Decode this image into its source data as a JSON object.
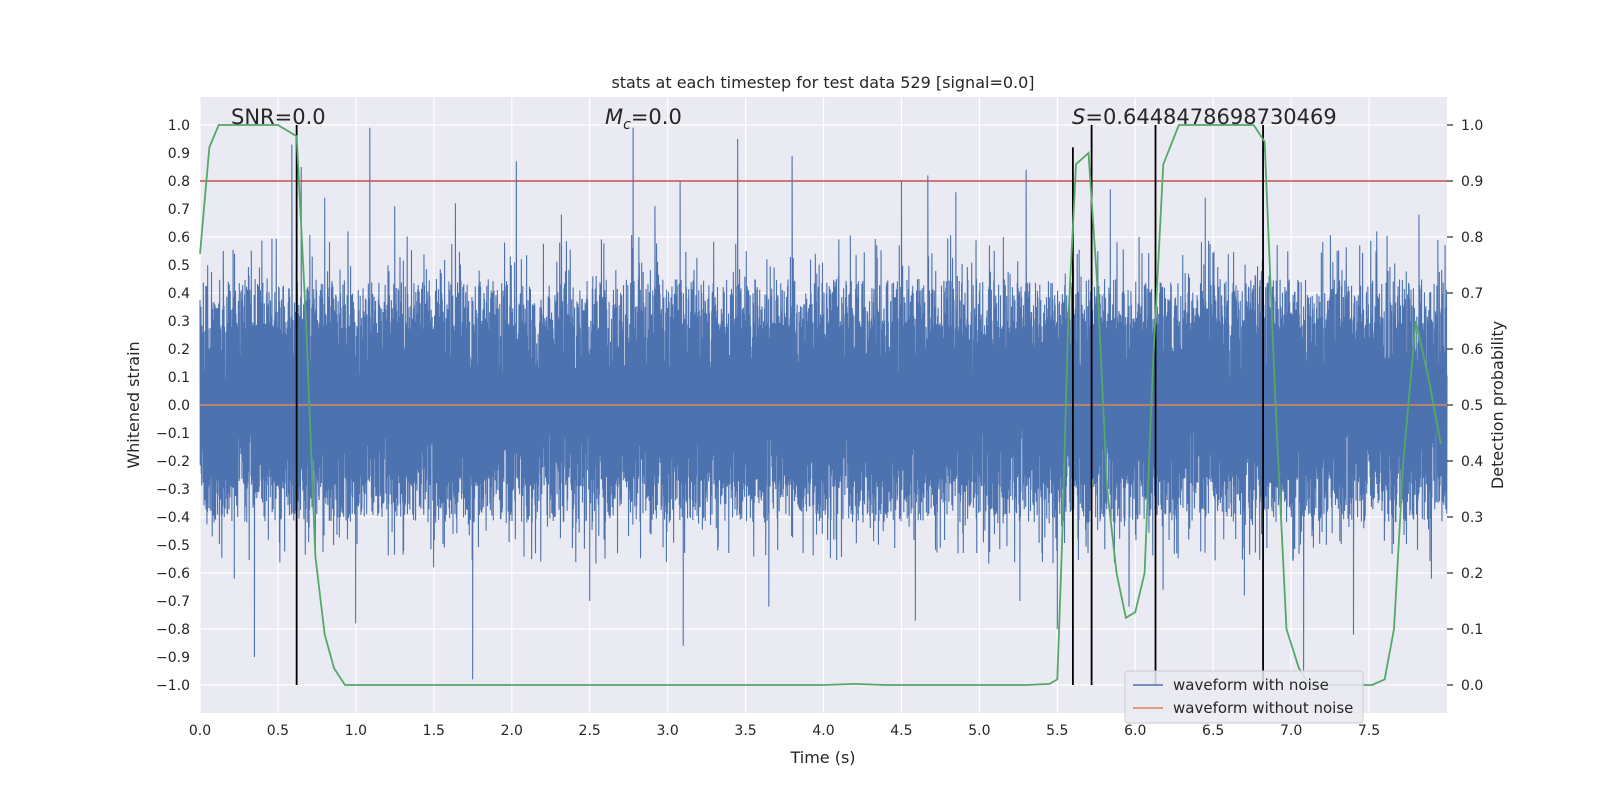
{
  "chart_data": {
    "type": "line",
    "title": "stats at each timestep for test data 529 [signal=0.0]",
    "xlabel": "Time (s)",
    "ylabel": "Whitened strain",
    "y2label": "Detection probability",
    "xlim": [
      0,
      8
    ],
    "ylim": [
      -1.1,
      1.1
    ],
    "y2lim": [
      -0.05,
      1.05
    ],
    "xticks": [
      0.0,
      0.5,
      1.0,
      1.5,
      2.0,
      2.5,
      3.0,
      3.5,
      4.0,
      4.5,
      5.0,
      5.5,
      6.0,
      6.5,
      7.0,
      7.5
    ],
    "xtick_labels": [
      "0.0",
      "0.5",
      "1.0",
      "1.5",
      "2.0",
      "2.5",
      "3.0",
      "3.5",
      "4.0",
      "4.5",
      "5.0",
      "5.5",
      "6.0",
      "6.5",
      "7.0",
      "7.5"
    ],
    "yticks": [
      -1.0,
      -0.9,
      -0.8,
      -0.7,
      -0.6,
      -0.5,
      -0.4,
      -0.3,
      -0.2,
      -0.1,
      0.0,
      0.1,
      0.2,
      0.3,
      0.4,
      0.5,
      0.6,
      0.7,
      0.8,
      0.9,
      1.0
    ],
    "ytick_labels": [
      "−1.0",
      "−0.9",
      "−0.8",
      "−0.7",
      "−0.6",
      "−0.5",
      "−0.4",
      "−0.3",
      "−0.2",
      "−0.1",
      "0.0",
      "0.1",
      "0.2",
      "0.3",
      "0.4",
      "0.5",
      "0.6",
      "0.7",
      "0.8",
      "0.9",
      "1.0"
    ],
    "y2ticks": [
      0.0,
      0.1,
      0.2,
      0.3,
      0.4,
      0.5,
      0.6,
      0.7,
      0.8,
      0.9,
      1.0
    ],
    "y2tick_labels": [
      "0.0",
      "0.1",
      "0.2",
      "0.3",
      "0.4",
      "0.5",
      "0.6",
      "0.7",
      "0.8",
      "0.9",
      "1.0"
    ],
    "grid": true,
    "threshold": {
      "value": 0.8,
      "color": "#c44e52"
    },
    "annotations": {
      "snr": {
        "prefix": "SNR=",
        "value": "0.0"
      },
      "mc": {
        "symbol": "M",
        "subscript": "c",
        "value": "=0.0"
      },
      "s": {
        "symbol": "S",
        "value": "=0.6448478698730469"
      }
    },
    "noisy_waveform": {
      "name": "waveform with noise",
      "color": "#4c72b0",
      "envelope_upper": 0.45,
      "envelope_lower": -0.42,
      "spikes": [
        [
          0.15,
          0.55
        ],
        [
          0.22,
          -0.62
        ],
        [
          0.35,
          -0.9
        ],
        [
          0.59,
          0.93
        ],
        [
          0.62,
          -0.45
        ],
        [
          0.65,
          0.85
        ],
        [
          0.8,
          0.74
        ],
        [
          0.95,
          0.62
        ],
        [
          1.0,
          -0.78
        ],
        [
          1.09,
          0.99
        ],
        [
          1.25,
          0.71
        ],
        [
          1.5,
          -0.58
        ],
        [
          1.64,
          0.72
        ],
        [
          1.75,
          -0.98
        ],
        [
          2.03,
          0.87
        ],
        [
          2.32,
          0.68
        ],
        [
          2.5,
          -0.7
        ],
        [
          2.78,
          0.99
        ],
        [
          2.92,
          0.71
        ],
        [
          3.08,
          0.8
        ],
        [
          3.1,
          -0.86
        ],
        [
          3.45,
          0.95
        ],
        [
          3.65,
          -0.72
        ],
        [
          3.8,
          0.89
        ],
        [
          4.5,
          0.8
        ],
        [
          4.59,
          -0.77
        ],
        [
          4.67,
          0.82
        ],
        [
          4.85,
          0.76
        ],
        [
          5.26,
          -0.7
        ],
        [
          5.3,
          0.84
        ],
        [
          5.5,
          -0.8
        ],
        [
          5.6,
          0.68
        ],
        [
          5.84,
          0.77
        ],
        [
          5.96,
          -0.72
        ],
        [
          6.18,
          -0.66
        ],
        [
          6.45,
          0.74
        ],
        [
          6.7,
          -0.68
        ],
        [
          7.08,
          -0.95
        ],
        [
          7.4,
          -0.82
        ],
        [
          7.55,
          0.62
        ],
        [
          7.82,
          0.68
        ],
        [
          7.9,
          -0.62
        ]
      ]
    },
    "clean_waveform": {
      "name": "waveform without noise",
      "color": "#dd8452",
      "values": [
        0.0
      ]
    },
    "detection_probability": {
      "color": "#55a868",
      "x": [
        0.0,
        0.06,
        0.12,
        0.2,
        0.3,
        0.4,
        0.5,
        0.56,
        0.62,
        0.68,
        0.74,
        0.8,
        0.86,
        0.93,
        1.0,
        1.5,
        2.0,
        2.5,
        3.0,
        3.5,
        4.0,
        4.2,
        4.4,
        5.0,
        5.3,
        5.45,
        5.5,
        5.53,
        5.57,
        5.62,
        5.7,
        5.76,
        5.82,
        5.88,
        5.94,
        6.0,
        6.06,
        6.11,
        6.18,
        6.28,
        6.38,
        6.48,
        6.58,
        6.68,
        6.76,
        6.83,
        6.9,
        6.97,
        7.05,
        7.12,
        7.2,
        7.3,
        7.4,
        7.52,
        7.6,
        7.66,
        7.72,
        7.8,
        7.88,
        7.96
      ],
      "values": [
        0.77,
        0.96,
        1.0,
        1.0,
        1.0,
        1.0,
        1.0,
        0.99,
        0.98,
        0.65,
        0.23,
        0.09,
        0.03,
        0.0,
        0.0,
        0.0,
        0.0,
        0.0,
        0.0,
        0.0,
        0.0,
        0.002,
        0.0,
        0.0,
        0.0,
        0.002,
        0.01,
        0.25,
        0.65,
        0.93,
        0.95,
        0.7,
        0.35,
        0.2,
        0.12,
        0.13,
        0.2,
        0.55,
        0.93,
        1.0,
        1.0,
        1.0,
        1.0,
        1.0,
        1.0,
        0.97,
        0.5,
        0.1,
        0.03,
        0.0,
        0.0,
        0.0,
        0.0,
        0.0,
        0.01,
        0.1,
        0.4,
        0.65,
        0.55,
        0.43
      ]
    },
    "event_markers": [
      {
        "x": 0.62,
        "top": 1.0
      },
      {
        "x": 5.6,
        "top": 0.92
      },
      {
        "x": 5.72,
        "top": 1.0
      },
      {
        "x": 6.13,
        "top": 1.0
      },
      {
        "x": 6.82,
        "top": 1.0
      }
    ],
    "legend": {
      "position": "bottom-right",
      "entries": [
        {
          "label": "waveform with noise",
          "color": "#4c72b0"
        },
        {
          "label": "waveform without noise",
          "color": "#dd8452"
        }
      ]
    }
  }
}
